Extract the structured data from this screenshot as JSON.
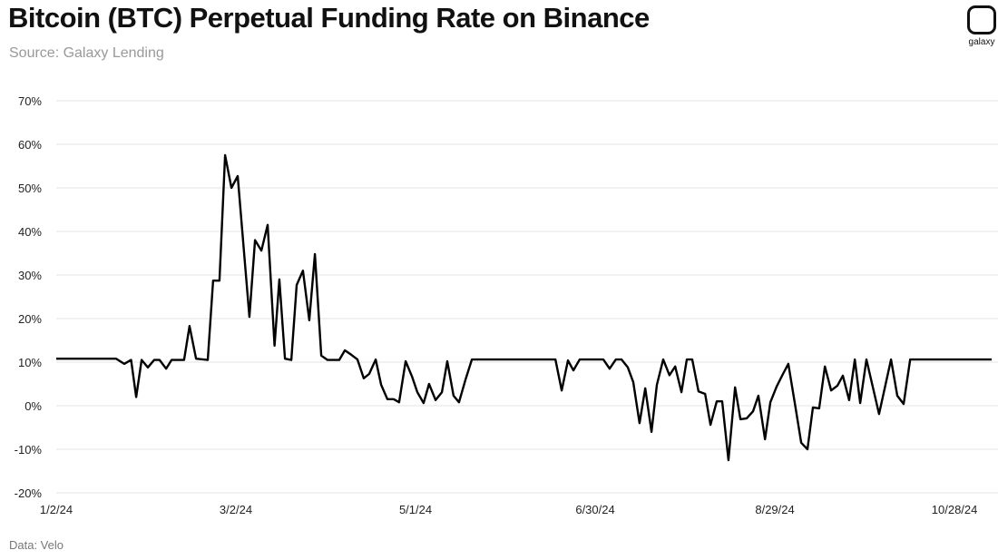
{
  "chart_data": {
    "type": "line",
    "title": "Bitcoin (BTC) Perpetual Funding Rate on Binance",
    "subtitle": "Source: Galaxy Lending",
    "footer": "Data: Velo",
    "logo_text": "galaxy",
    "xlabel": "",
    "ylabel": "",
    "ylim": [
      -20,
      70
    ],
    "yticks": [
      -20,
      -10,
      0,
      10,
      20,
      30,
      40,
      50,
      60,
      70
    ],
    "ytick_labels": [
      "-20%",
      "-10%",
      "0%",
      "10%",
      "20%",
      "30%",
      "40%",
      "50%",
      "60%",
      "70%"
    ],
    "xticks_days": [
      0,
      60,
      120,
      180,
      240,
      300
    ],
    "xtick_labels": [
      "1/2/24",
      "3/2/24",
      "5/1/24",
      "6/30/24",
      "8/29/24",
      "10/28/24"
    ],
    "xlim_days": [
      0,
      312.4
    ],
    "x_unit": "days since 1/2/24",
    "grid": true,
    "line_color": "#000000",
    "series": [
      {
        "name": "Funding Rate",
        "x": [
          0,
          20,
          22.7,
          25,
          26.7,
          28.5,
          30.6,
          32.7,
          34.5,
          36.7,
          38.5,
          42.7,
          44.5,
          46.7,
          50.6,
          52.4,
          54.5,
          56.4,
          58.5,
          60.6,
          64.5,
          66.4,
          68.5,
          70.6,
          72.9,
          74.5,
          76.4,
          78.5,
          80.3,
          82.4,
          84.5,
          86.4,
          88.5,
          90.6,
          94.5,
          96.4,
          98.5,
          100.6,
          102.7,
          104.5,
          106.7,
          108.5,
          110.6,
          112.7,
          114.5,
          116.7,
          118.8,
          120.6,
          122.7,
          124.5,
          126.7,
          128.8,
          130.6,
          132.7,
          134.5,
          136.7,
          138.8,
          166.7,
          168.8,
          170.9,
          172.7,
          174.8,
          182.7,
          184.8,
          186.9,
          188.8,
          190.9,
          192.7,
          194.8,
          196.7,
          198.8,
          200.6,
          202.7,
          204.8,
          206.7,
          208.8,
          210.6,
          212.4,
          214.5,
          216.7,
          218.5,
          220.6,
          222.4,
          224.5,
          226.7,
          228.5,
          230.6,
          232.7,
          234.5,
          236.7,
          238.5,
          240.6,
          242.7,
          244.5,
          246.7,
          248.8,
          250.9,
          252.7,
          254.8,
          256.7,
          258.8,
          260.9,
          262.7,
          264.8,
          266.7,
          268.5,
          270.6,
          274.8,
          278.8,
          280.9,
          283,
          285.2,
          312.4
        ],
        "values": [
          10.8,
          10.8,
          9.6,
          10.5,
          2,
          10.5,
          8.8,
          10.5,
          10.5,
          8.5,
          10.5,
          10.5,
          18.3,
          10.8,
          10.5,
          28.7,
          28.7,
          57.5,
          50,
          52.7,
          20.4,
          38,
          35.6,
          41.5,
          13.8,
          29,
          10.8,
          10.5,
          27.7,
          31,
          19.6,
          34.8,
          11.5,
          10.5,
          10.5,
          12.7,
          11.7,
          10.6,
          6.3,
          7.3,
          10.6,
          4.8,
          1.5,
          1.5,
          0.8,
          10.2,
          6.7,
          3.1,
          0.6,
          5,
          1.3,
          3.1,
          10.2,
          2.3,
          0.8,
          6,
          10.6,
          10.6,
          3.5,
          10.4,
          8.1,
          10.6,
          10.6,
          8.5,
          10.6,
          10.6,
          8.8,
          5.4,
          -4,
          4,
          -6,
          4.8,
          10.6,
          7,
          9,
          3.1,
          10.6,
          10.6,
          3.3,
          2.7,
          -4.4,
          1,
          1,
          -12.5,
          4.2,
          -3.1,
          -2.9,
          -1.3,
          2.3,
          -7.7,
          0.8,
          4.4,
          7.3,
          9.6,
          0.4,
          -8.5,
          -10,
          -0.4,
          -0.6,
          9,
          3.5,
          4.6,
          6.9,
          1.3,
          10.6,
          0.6,
          10.6,
          -1.9,
          10.6,
          2.3,
          0.4,
          10.6,
          10.6
        ]
      }
    ]
  }
}
